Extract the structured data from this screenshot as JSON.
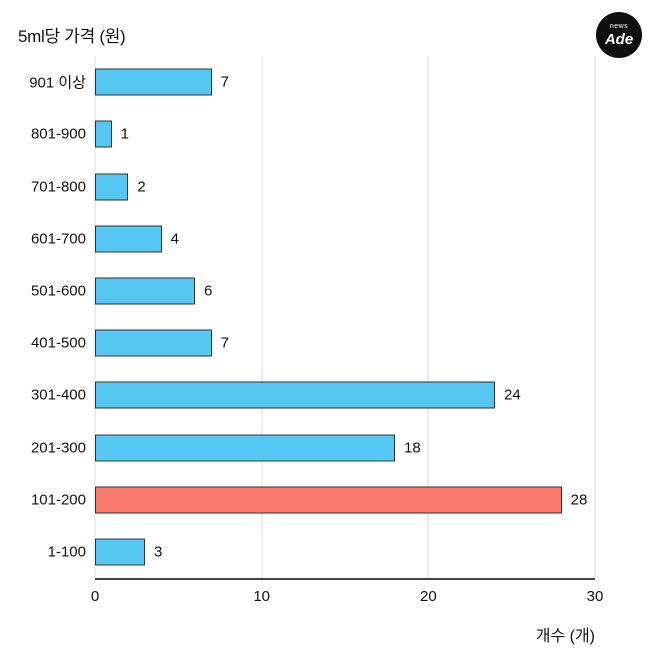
{
  "page": {
    "background": "#FFFFFF"
  },
  "logo": {
    "line1": "news",
    "line2": "Ade",
    "bg": "#0E0E0E",
    "fg": "#FFFFFF"
  },
  "chart_data": {
    "type": "bar",
    "orientation": "horizontal",
    "title": "5ml당 가격 (원)",
    "xlabel": "개수 (개)",
    "ylabel": "",
    "categories": [
      "901 이상",
      "801-900",
      "701-800",
      "601-700",
      "501-600",
      "401-500",
      "301-400",
      "201-300",
      "101-200",
      "1-100"
    ],
    "values": [
      7,
      1,
      2,
      4,
      6,
      7,
      24,
      18,
      28,
      3
    ],
    "xlim": [
      0,
      30
    ],
    "xticks": [
      0,
      10,
      20,
      30
    ],
    "grid": "vertical-gridlines",
    "legend": "none",
    "highlight_category": "101-200",
    "colors": {
      "bar": "#55C7F2",
      "highlight": "#F9796C",
      "bar_border": "#333333",
      "grid": "#D9D9D9",
      "axis": "#444444",
      "text": "#111111"
    }
  }
}
